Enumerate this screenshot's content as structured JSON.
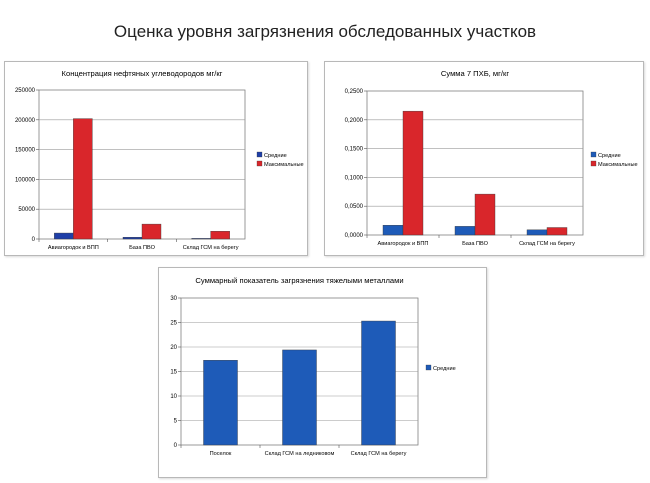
{
  "page": {
    "title": "Оценка уровня загрязнения обследованных участков"
  },
  "colors": {
    "avg": "#1f3fa8",
    "max": "#d9262b",
    "single": "#1e5bb8",
    "plot_bg": "#ffffff",
    "grid": "#9a9a9a"
  },
  "chart_data": [
    {
      "type": "bar",
      "title": "Концентрация нефтяных углеводородов мг/кг",
      "categories": [
        "Авиагородок и ВПП",
        "База ПВО",
        "Склад ГСМ на берегу"
      ],
      "series": [
        {
          "name": "Средние",
          "values": [
            10000,
            3000,
            1000
          ],
          "color": "#1f3fa8"
        },
        {
          "name": "Максимальные",
          "values": [
            202000,
            25000,
            13000
          ],
          "color": "#d9262b"
        }
      ],
      "ylim": [
        0,
        250000
      ],
      "yticks": [
        "0",
        "50000",
        "100000",
        "150000",
        "200000",
        "250000"
      ],
      "grid": true,
      "legend": "right"
    },
    {
      "type": "bar",
      "title": "Сумма 7 ПХБ, мг/кг",
      "categories": [
        "Авиагородок и ВПП",
        "База ПВО",
        "Склад ГСМ на берегу"
      ],
      "series": [
        {
          "name": "Средние",
          "values": [
            0.017,
            0.015,
            0.009
          ],
          "color": "#1e5bb8"
        },
        {
          "name": "Максимальные",
          "values": [
            0.215,
            0.071,
            0.013
          ],
          "color": "#d9262b"
        }
      ],
      "ylim": [
        0,
        0.25
      ],
      "yticks": [
        "0,0000",
        "0,0500",
        "0,1000",
        "0,1500",
        "0,2000",
        "0,2500"
      ],
      "grid": true,
      "legend": "right"
    },
    {
      "type": "bar",
      "title": "Суммарный показатель загрязнения тяжелыми металлами",
      "categories": [
        "Поселок",
        "Склад ГСМ на ледниковом",
        "Склад ГСМ на берегу"
      ],
      "series": [
        {
          "name": "Средние",
          "values": [
            17.3,
            19.4,
            25.3
          ],
          "color": "#1e5bb8"
        }
      ],
      "ylim": [
        0,
        30
      ],
      "yticks": [
        "0",
        "5",
        "10",
        "15",
        "20",
        "25",
        "30"
      ],
      "grid": true,
      "legend": "right"
    }
  ]
}
